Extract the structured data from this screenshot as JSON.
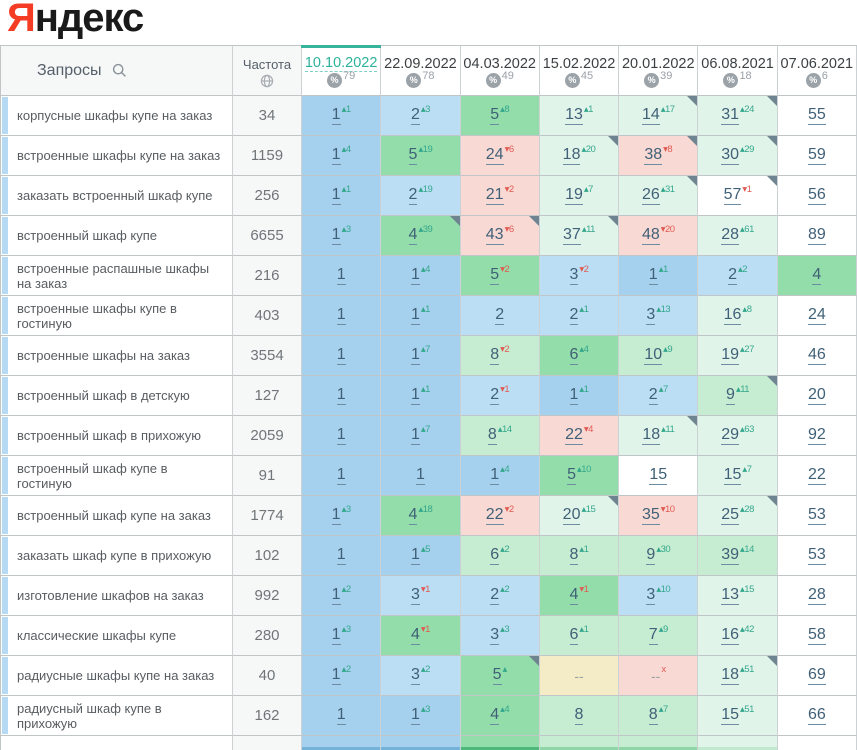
{
  "logo": {
    "first_letter": "Я",
    "rest": "ндекс"
  },
  "header": {
    "queries_label": "Запросы",
    "frequency_label": "Частота"
  },
  "columns": [
    {
      "date": "10.10.2022",
      "count": "79",
      "active": true
    },
    {
      "date": "22.09.2022",
      "count": "78",
      "active": false
    },
    {
      "date": "04.03.2022",
      "count": "49",
      "active": false
    },
    {
      "date": "15.02.2022",
      "count": "45",
      "active": false
    },
    {
      "date": "20.01.2022",
      "count": "39",
      "active": false
    },
    {
      "date": "06.08.2021",
      "count": "18",
      "active": false
    },
    {
      "date": "07.06.2021",
      "count": "6",
      "active": false
    }
  ],
  "rows": [
    {
      "query": "корпусные шкафы купе на заказ",
      "freq": "34",
      "cells": [
        {
          "v": "1",
          "s": "1",
          "d": "up",
          "bg": "b1"
        },
        {
          "v": "2",
          "s": "3",
          "d": "up",
          "bg": "b2"
        },
        {
          "v": "5",
          "s": "8",
          "d": "up",
          "bg": "g1"
        },
        {
          "v": "13",
          "s": "1",
          "d": "up",
          "bg": "g3"
        },
        {
          "v": "14",
          "s": "17",
          "d": "up",
          "bg": "g3",
          "c": true
        },
        {
          "v": "31",
          "s": "24",
          "d": "up",
          "bg": "g3",
          "c": true
        },
        {
          "v": "55",
          "s": "",
          "d": "none",
          "bg": "w"
        }
      ]
    },
    {
      "query": "встроенные шкафы купе на заказ",
      "freq": "1159",
      "cells": [
        {
          "v": "1",
          "s": "4",
          "d": "up",
          "bg": "b1"
        },
        {
          "v": "5",
          "s": "19",
          "d": "up",
          "bg": "g1"
        },
        {
          "v": "24",
          "s": "6",
          "d": "down",
          "bg": "pink"
        },
        {
          "v": "18",
          "s": "20",
          "d": "up",
          "bg": "g3",
          "c": true
        },
        {
          "v": "38",
          "s": "8",
          "d": "down",
          "bg": "pink",
          "c": true
        },
        {
          "v": "30",
          "s": "29",
          "d": "up",
          "bg": "g3",
          "c": true
        },
        {
          "v": "59",
          "s": "",
          "d": "none",
          "bg": "w"
        }
      ]
    },
    {
      "query": "заказать встроенный шкаф купе",
      "freq": "256",
      "cells": [
        {
          "v": "1",
          "s": "1",
          "d": "up",
          "bg": "b1"
        },
        {
          "v": "2",
          "s": "19",
          "d": "up",
          "bg": "b2"
        },
        {
          "v": "21",
          "s": "2",
          "d": "down",
          "bg": "pink"
        },
        {
          "v": "19",
          "s": "7",
          "d": "up",
          "bg": "g3"
        },
        {
          "v": "26",
          "s": "31",
          "d": "up",
          "bg": "g3",
          "c": true
        },
        {
          "v": "57",
          "s": "1",
          "d": "down",
          "bg": "w",
          "c": true
        },
        {
          "v": "56",
          "s": "",
          "d": "none",
          "bg": "w"
        }
      ]
    },
    {
      "query": "встроенный шкаф купе",
      "freq": "6655",
      "cells": [
        {
          "v": "1",
          "s": "3",
          "d": "up",
          "bg": "b1"
        },
        {
          "v": "4",
          "s": "39",
          "d": "up",
          "bg": "g1",
          "c": true
        },
        {
          "v": "43",
          "s": "6",
          "d": "down",
          "bg": "pink",
          "c": true
        },
        {
          "v": "37",
          "s": "11",
          "d": "up",
          "bg": "g3",
          "c": true
        },
        {
          "v": "48",
          "s": "20",
          "d": "down",
          "bg": "pink"
        },
        {
          "v": "28",
          "s": "61",
          "d": "up",
          "bg": "g3"
        },
        {
          "v": "89",
          "s": "",
          "d": "none",
          "bg": "w"
        }
      ]
    },
    {
      "query": "встроенные распашные шкафы на заказ",
      "freq": "216",
      "cells": [
        {
          "v": "1",
          "s": "",
          "d": "none",
          "bg": "b1"
        },
        {
          "v": "1",
          "s": "4",
          "d": "up",
          "bg": "b1"
        },
        {
          "v": "5",
          "s": "2",
          "d": "down",
          "bg": "g1"
        },
        {
          "v": "3",
          "s": "2",
          "d": "down",
          "bg": "b2"
        },
        {
          "v": "1",
          "s": "1",
          "d": "up",
          "bg": "b1"
        },
        {
          "v": "2",
          "s": "2",
          "d": "up",
          "bg": "b2"
        },
        {
          "v": "4",
          "s": "",
          "d": "none",
          "bg": "g1"
        }
      ]
    },
    {
      "query": "встроенные шкафы купе в гостиную",
      "freq": "403",
      "cells": [
        {
          "v": "1",
          "s": "",
          "d": "none",
          "bg": "b1"
        },
        {
          "v": "1",
          "s": "1",
          "d": "up",
          "bg": "b1"
        },
        {
          "v": "2",
          "s": "",
          "d": "none",
          "bg": "b2"
        },
        {
          "v": "2",
          "s": "1",
          "d": "up",
          "bg": "b2"
        },
        {
          "v": "3",
          "s": "13",
          "d": "up",
          "bg": "b2"
        },
        {
          "v": "16",
          "s": "8",
          "d": "up",
          "bg": "g3"
        },
        {
          "v": "24",
          "s": "",
          "d": "none",
          "bg": "w"
        }
      ]
    },
    {
      "query": "встроенные шкафы на заказ",
      "freq": "3554",
      "cells": [
        {
          "v": "1",
          "s": "",
          "d": "none",
          "bg": "b1"
        },
        {
          "v": "1",
          "s": "7",
          "d": "up",
          "bg": "b1"
        },
        {
          "v": "8",
          "s": "2",
          "d": "down",
          "bg": "g2"
        },
        {
          "v": "6",
          "s": "4",
          "d": "up",
          "bg": "g1"
        },
        {
          "v": "10",
          "s": "9",
          "d": "up",
          "bg": "g2"
        },
        {
          "v": "19",
          "s": "27",
          "d": "up",
          "bg": "g3"
        },
        {
          "v": "46",
          "s": "",
          "d": "none",
          "bg": "w"
        }
      ]
    },
    {
      "query": "встроенный шкаф в детскую",
      "freq": "127",
      "cells": [
        {
          "v": "1",
          "s": "",
          "d": "none",
          "bg": "b1"
        },
        {
          "v": "1",
          "s": "1",
          "d": "up",
          "bg": "b1"
        },
        {
          "v": "2",
          "s": "1",
          "d": "down",
          "bg": "b2"
        },
        {
          "v": "1",
          "s": "1",
          "d": "up",
          "bg": "b1"
        },
        {
          "v": "2",
          "s": "7",
          "d": "up",
          "bg": "b2"
        },
        {
          "v": "9",
          "s": "11",
          "d": "up",
          "bg": "g2",
          "c": true
        },
        {
          "v": "20",
          "s": "",
          "d": "none",
          "bg": "w"
        }
      ]
    },
    {
      "query": "встроенный шкаф в прихожую",
      "freq": "2059",
      "cells": [
        {
          "v": "1",
          "s": "",
          "d": "none",
          "bg": "b1"
        },
        {
          "v": "1",
          "s": "7",
          "d": "up",
          "bg": "b1"
        },
        {
          "v": "8",
          "s": "14",
          "d": "up",
          "bg": "g2"
        },
        {
          "v": "22",
          "s": "4",
          "d": "down",
          "bg": "pink"
        },
        {
          "v": "18",
          "s": "11",
          "d": "up",
          "bg": "g3",
          "c": true
        },
        {
          "v": "29",
          "s": "63",
          "d": "up",
          "bg": "g3"
        },
        {
          "v": "92",
          "s": "",
          "d": "none",
          "bg": "w"
        }
      ]
    },
    {
      "query": "встроенный шкаф купе в гостиную",
      "freq": "91",
      "cells": [
        {
          "v": "1",
          "s": "",
          "d": "none",
          "bg": "b1"
        },
        {
          "v": "1",
          "s": "",
          "d": "none",
          "bg": "b1"
        },
        {
          "v": "1",
          "s": "4",
          "d": "up",
          "bg": "b1"
        },
        {
          "v": "5",
          "s": "10",
          "d": "up",
          "bg": "g1"
        },
        {
          "v": "15",
          "s": "",
          "d": "none",
          "bg": "w"
        },
        {
          "v": "15",
          "s": "7",
          "d": "up",
          "bg": "g3"
        },
        {
          "v": "22",
          "s": "",
          "d": "none",
          "bg": "w"
        }
      ]
    },
    {
      "query": "встроенный шкаф купе на заказ",
      "freq": "1774",
      "cells": [
        {
          "v": "1",
          "s": "3",
          "d": "up",
          "bg": "b1"
        },
        {
          "v": "4",
          "s": "18",
          "d": "up",
          "bg": "g1"
        },
        {
          "v": "22",
          "s": "2",
          "d": "down",
          "bg": "pink"
        },
        {
          "v": "20",
          "s": "15",
          "d": "up",
          "bg": "g3",
          "c": true
        },
        {
          "v": "35",
          "s": "10",
          "d": "down",
          "bg": "pink"
        },
        {
          "v": "25",
          "s": "28",
          "d": "up",
          "bg": "g3",
          "c": true
        },
        {
          "v": "53",
          "s": "",
          "d": "none",
          "bg": "w"
        }
      ]
    },
    {
      "query": "заказать шкаф купе в прихожую",
      "freq": "102",
      "cells": [
        {
          "v": "1",
          "s": "",
          "d": "none",
          "bg": "b1"
        },
        {
          "v": "1",
          "s": "5",
          "d": "up",
          "bg": "b1"
        },
        {
          "v": "6",
          "s": "2",
          "d": "up",
          "bg": "g2"
        },
        {
          "v": "8",
          "s": "1",
          "d": "up",
          "bg": "g2"
        },
        {
          "v": "9",
          "s": "30",
          "d": "up",
          "bg": "g2"
        },
        {
          "v": "39",
          "s": "14",
          "d": "up",
          "bg": "g2"
        },
        {
          "v": "53",
          "s": "",
          "d": "none",
          "bg": "w"
        }
      ]
    },
    {
      "query": "изготовление шкафов на заказ",
      "freq": "992",
      "cells": [
        {
          "v": "1",
          "s": "2",
          "d": "up",
          "bg": "b1"
        },
        {
          "v": "3",
          "s": "1",
          "d": "down",
          "bg": "b2"
        },
        {
          "v": "2",
          "s": "2",
          "d": "up",
          "bg": "b2"
        },
        {
          "v": "4",
          "s": "1",
          "d": "down",
          "bg": "g1"
        },
        {
          "v": "3",
          "s": "10",
          "d": "up",
          "bg": "b2"
        },
        {
          "v": "13",
          "s": "15",
          "d": "up",
          "bg": "g3"
        },
        {
          "v": "28",
          "s": "",
          "d": "none",
          "bg": "w"
        }
      ]
    },
    {
      "query": "классические шкафы купе",
      "freq": "280",
      "cells": [
        {
          "v": "1",
          "s": "3",
          "d": "up",
          "bg": "b1"
        },
        {
          "v": "4",
          "s": "1",
          "d": "down",
          "bg": "g1"
        },
        {
          "v": "3",
          "s": "3",
          "d": "up",
          "bg": "b2"
        },
        {
          "v": "6",
          "s": "1",
          "d": "up",
          "bg": "g2"
        },
        {
          "v": "7",
          "s": "9",
          "d": "up",
          "bg": "g2"
        },
        {
          "v": "16",
          "s": "42",
          "d": "up",
          "bg": "g3"
        },
        {
          "v": "58",
          "s": "",
          "d": "none",
          "bg": "w"
        }
      ]
    },
    {
      "query": "радиусные шкафы купе на заказ",
      "freq": "40",
      "cells": [
        {
          "v": "1",
          "s": "2",
          "d": "up",
          "bg": "b1"
        },
        {
          "v": "3",
          "s": "2",
          "d": "up",
          "bg": "b2"
        },
        {
          "v": "5",
          "s": "",
          "d": "up",
          "bg": "g1",
          "c": true
        },
        {
          "v": "--",
          "s": "",
          "d": "none",
          "bg": "beige",
          "dash": true
        },
        {
          "v": "--",
          "s": "x",
          "d": "down",
          "bg": "pink",
          "dash": true
        },
        {
          "v": "18",
          "s": "51",
          "d": "up",
          "bg": "g3",
          "c": true
        },
        {
          "v": "69",
          "s": "",
          "d": "none",
          "bg": "w"
        }
      ]
    },
    {
      "query": "радиусный шкаф купе в прихожую",
      "freq": "162",
      "cells": [
        {
          "v": "1",
          "s": "",
          "d": "none",
          "bg": "b1"
        },
        {
          "v": "1",
          "s": "3",
          "d": "up",
          "bg": "b1"
        },
        {
          "v": "4",
          "s": "4",
          "d": "up",
          "bg": "g1"
        },
        {
          "v": "8",
          "s": "",
          "d": "none",
          "bg": "g2"
        },
        {
          "v": "8",
          "s": "7",
          "d": "up",
          "bg": "g2"
        },
        {
          "v": "15",
          "s": "51",
          "d": "up",
          "bg": "g3"
        },
        {
          "v": "66",
          "s": "",
          "d": "none",
          "bg": "w"
        }
      ]
    }
  ],
  "colors": {
    "b1": "#a5d1ee",
    "b2": "#bcdef4",
    "g1": "#93ddaa",
    "g2": "#c6edd2",
    "g3": "#e1f4ea",
    "pink": "#f9d9d4",
    "beige": "#f4ecc6",
    "w": "#ffffff",
    "up": "#33a78c",
    "down": "#e05a52",
    "active_date": "#2cb29a",
    "logo_red": "#f43b23"
  },
  "arrows": {
    "up": "▴",
    "down": "▾"
  },
  "bottom_strip": {
    "cells": [
      "b1",
      "b1",
      "g1",
      "g2",
      "g2",
      "g3",
      "w"
    ],
    "edges": [
      "#74b2da",
      "#74b2da",
      "#4eb87b",
      "#8ed6a8",
      "#8ed6a8",
      "#c0e9d0",
      "#ffffff"
    ]
  }
}
